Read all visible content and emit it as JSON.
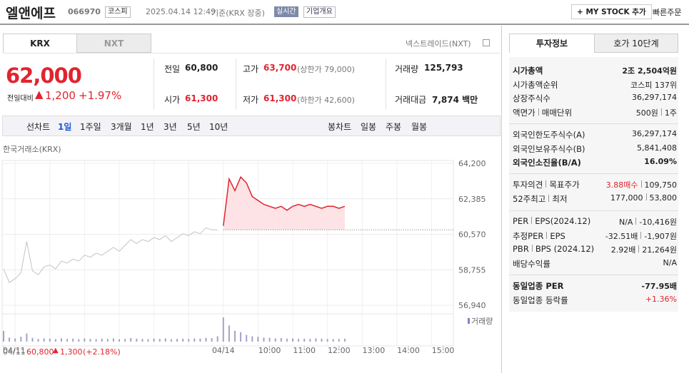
{
  "header": {
    "name": "엘앤에프",
    "code": "066970",
    "market": "코스피",
    "datetime": "2025.04.14 12:49",
    "basis": "기준(KRX 장중)",
    "realtime": "실시간",
    "overview": "기업개요",
    "mystock": "+ MY STOCK 추가",
    "quick_order": "빠른주문"
  },
  "tabs": [
    "KRX",
    "NXT"
  ],
  "nextrade": "넥스트레이드(NXT)",
  "price": {
    "current": "62,000",
    "change_label": "전일대비",
    "change": "1,200",
    "pct": "+1.97%"
  },
  "stats": {
    "prev_label": "전일",
    "prev": "60,800",
    "open_label": "시가",
    "open": "61,300",
    "high_label": "고가",
    "high": "63,700",
    "upper_limit": "(상한가 79,000)",
    "low_label": "저가",
    "low": "61,300",
    "lower_limit": "(하한가 42,600)",
    "volume_label": "거래량",
    "volume": "125,793",
    "amount_label": "거래대금",
    "amount": "7,874 백만"
  },
  "periods": {
    "line_label": "선차트",
    "line": [
      "1일",
      "1주일",
      "3개월",
      "1년",
      "3년",
      "5년",
      "10년"
    ],
    "candle_label": "봉차트",
    "candle": [
      "일봉",
      "주봉",
      "월봉"
    ]
  },
  "chart_data": {
    "type": "line",
    "source": "한국거래소(KRX)",
    "volume_label": "거래량",
    "categories": [
      "04/11",
      null,
      null,
      null,
      null,
      null,
      null,
      null,
      null,
      null,
      null,
      null,
      null,
      null,
      null,
      null,
      null,
      null,
      null,
      null,
      null,
      null,
      null,
      null,
      null,
      null,
      null,
      null,
      null,
      null,
      null,
      null,
      null,
      null,
      null,
      null,
      null,
      null,
      "04/14",
      null,
      null,
      null,
      null,
      null,
      null,
      null,
      "10:00",
      null,
      null,
      null,
      null,
      null,
      "11:00",
      null,
      null,
      null,
      null,
      null,
      "12:00",
      null,
      null,
      null,
      null,
      null,
      "13:00",
      null,
      null,
      null,
      null,
      null,
      "14:00",
      null,
      null,
      null,
      null,
      null,
      "15:00",
      null
    ],
    "series": [
      {
        "color": "#c4c4c4",
        "values": [
          58800,
          58100,
          58300,
          58600,
          60200,
          58700,
          58500,
          58900,
          59000,
          58800,
          59200,
          59100,
          59300,
          59200,
          59500,
          59400,
          59600,
          59500,
          59700,
          59900,
          59700,
          60000,
          60300,
          60100,
          60300,
          60200,
          60400,
          60300,
          60500,
          60200,
          60400,
          60600,
          60500,
          60700,
          60600,
          60900,
          60800,
          60800,
          null,
          null,
          null,
          null,
          null,
          null,
          null,
          null,
          null,
          null,
          null,
          null,
          null,
          null,
          null,
          null,
          null,
          null,
          null,
          null,
          null,
          null,
          null,
          null,
          null,
          null,
          null,
          null,
          null,
          null,
          null,
          null,
          null,
          null,
          null,
          null,
          null,
          null,
          null,
          null
        ]
      },
      {
        "color": "#e0242f",
        "fill": "#fde3e6",
        "values": [
          null,
          null,
          null,
          null,
          null,
          null,
          null,
          null,
          null,
          null,
          null,
          null,
          null,
          null,
          null,
          null,
          null,
          null,
          null,
          null,
          null,
          null,
          null,
          null,
          null,
          null,
          null,
          null,
          null,
          null,
          null,
          null,
          null,
          null,
          null,
          null,
          null,
          null,
          61000,
          63400,
          62800,
          63500,
          63200,
          62500,
          62300,
          62100,
          62000,
          61900,
          62000,
          61800,
          62000,
          62100,
          62000,
          62100,
          62000,
          61900,
          62000,
          62000,
          61900,
          62000,
          null,
          null,
          null,
          null,
          null,
          null,
          null,
          null,
          null,
          null,
          null,
          null,
          null,
          null,
          null,
          null,
          null,
          null
        ]
      }
    ],
    "volume": [
      40,
      15,
      12,
      18,
      30,
      14,
      10,
      12,
      11,
      9,
      12,
      10,
      11,
      9,
      12,
      10,
      9,
      11,
      10,
      12,
      9,
      10,
      13,
      11,
      10,
      9,
      11,
      10,
      12,
      9,
      10,
      11,
      10,
      12,
      11,
      14,
      13,
      20,
      90,
      60,
      40,
      35,
      25,
      20,
      18,
      15,
      14,
      12,
      13,
      11,
      12,
      10,
      11,
      10,
      12,
      11,
      10,
      9,
      10,
      11,
      null,
      null,
      null,
      null,
      null,
      null,
      null,
      null,
      null,
      null,
      null,
      null,
      null,
      null,
      null,
      null,
      null,
      null
    ],
    "volume_color": "#a3a3c6",
    "baseline": 60800,
    "ylim": [
      56940,
      64200
    ],
    "yticks": [
      {
        "value": 56940,
        "label": "56,940"
      },
      {
        "value": 58755,
        "label": "58,755"
      },
      {
        "value": 60570,
        "label": "60,570"
      },
      {
        "value": 62385,
        "label": "62,385"
      },
      {
        "value": 64200,
        "label": "64,200"
      }
    ],
    "grid": true
  },
  "footer": {
    "date": "04/11",
    "close": "60,800",
    "change": "1,300",
    "pct": "(+2.18%)"
  },
  "info": {
    "tabs": [
      "투자정보",
      "호가 10단계"
    ],
    "sections": [
      [
        {
          "label": [
            "시가총액"
          ],
          "value": [
            "2조 2,504억원"
          ],
          "strong": true
        },
        {
          "label": [
            "시가총액순위"
          ],
          "value": [
            "코스피 137위"
          ]
        },
        {
          "label": [
            "상장주식수"
          ],
          "value": [
            "36,297,174"
          ]
        },
        {
          "label": [
            "액면가",
            "매매단위"
          ],
          "value": [
            "500원",
            "1주"
          ]
        }
      ],
      [
        {
          "label": [
            "외국인한도주식수(A)"
          ],
          "value": [
            "36,297,174"
          ]
        },
        {
          "label": [
            "외국인보유주식수(B)"
          ],
          "value": [
            "5,841,408"
          ]
        },
        {
          "label": [
            "외국인소진율(B/A)"
          ],
          "value": [
            "16.09%"
          ],
          "strong": true
        }
      ],
      [
        {
          "label": [
            "투자의견",
            "목표주가"
          ],
          "value": [
            "3.88매수",
            "109,750"
          ],
          "red": 0
        },
        {
          "label": [
            "52주최고",
            "최저"
          ],
          "value": [
            "177,000",
            "53,800"
          ]
        }
      ],
      [
        {
          "label": [
            "PER",
            "EPS(2024.12)"
          ],
          "value": [
            "N/A",
            "-10,416원"
          ]
        },
        {
          "label": [
            "추정PER",
            "EPS"
          ],
          "value": [
            "-32.51배",
            "-1,907원"
          ]
        },
        {
          "label": [
            "PBR",
            "BPS (2024.12)"
          ],
          "value": [
            "2.92배",
            "21,264원"
          ]
        },
        {
          "label": [
            "배당수익률"
          ],
          "value": [
            "N/A"
          ]
        }
      ],
      [
        {
          "label": [
            "동일업종 PER"
          ],
          "value": [
            "-77.95배"
          ],
          "strong": true
        },
        {
          "label": [
            "동일업종 등락률"
          ],
          "value": [
            "+1.36%"
          ],
          "red": 0
        }
      ]
    ]
  }
}
